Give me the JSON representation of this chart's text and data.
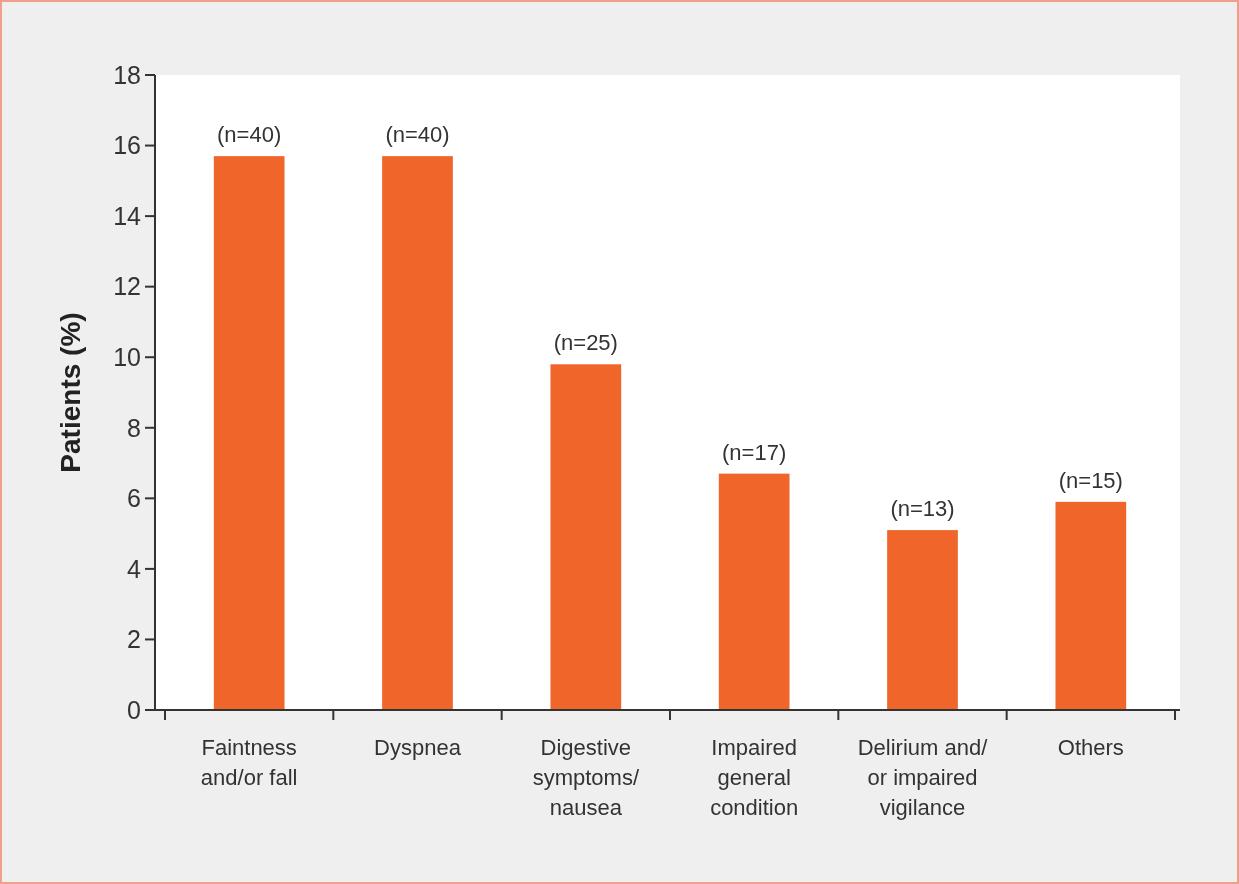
{
  "chart_data": {
    "type": "bar",
    "ylabel": "Patients (%)",
    "categories": [
      "Faintness and/or fall",
      "Dyspnea",
      "Digestive symptoms/ nausea",
      "Impaired general condition",
      "Delirium and/ or impaired vigilance",
      "Others"
    ],
    "values": [
      15.7,
      15.7,
      9.8,
      6.7,
      5.1,
      5.9
    ],
    "annotations": [
      {
        "text": "(n=40)",
        "x": "Faintness and/or fall",
        "y": 15.7
      },
      {
        "text": "(n=40)",
        "x": "Dyspnea",
        "y": 15.7
      },
      {
        "text": "(n=25)",
        "x": "Digestive symptoms/ nausea",
        "y": 9.8
      },
      {
        "text": "(n=17)",
        "x": "Impaired general condition",
        "y": 6.7
      },
      {
        "text": "(n=13)",
        "x": "Delirium and/ or impaired vigilance",
        "y": 5.1
      },
      {
        "text": "(n=15)",
        "x": "Others",
        "y": 5.9
      }
    ],
    "color": "#f0662a",
    "ylim": [
      0,
      18
    ],
    "yticks": [
      0,
      2,
      4,
      6,
      8,
      10,
      12,
      14,
      16,
      18
    ]
  }
}
